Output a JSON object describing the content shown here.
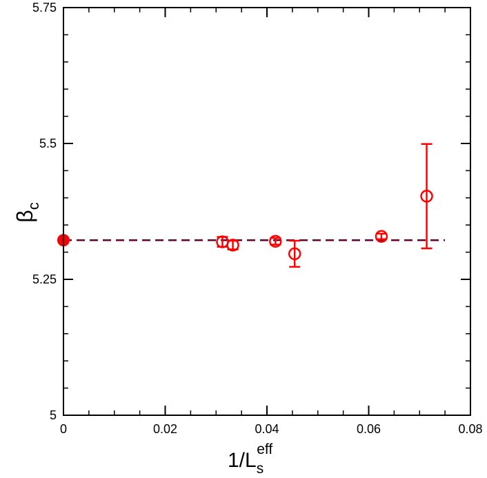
{
  "chart_data": {
    "type": "scatter",
    "xlabel": {
      "main": "1/L",
      "sub": "s",
      "sup": "eff"
    },
    "ylabel": {
      "main": "β",
      "sub": "c"
    },
    "xlim": [
      0,
      0.08
    ],
    "ylim": [
      5,
      5.75
    ],
    "x_ticks": [
      {
        "value": 0,
        "label": "0"
      },
      {
        "value": 0.02,
        "label": "0.02"
      },
      {
        "value": 0.04,
        "label": "0.04"
      },
      {
        "value": 0.06,
        "label": "0.06"
      },
      {
        "value": 0.08,
        "label": "0.08"
      }
    ],
    "y_ticks": [
      {
        "value": 5,
        "label": "5"
      },
      {
        "value": 5.25,
        "label": "5.25"
      },
      {
        "value": 5.5,
        "label": "5.5"
      },
      {
        "value": 5.75,
        "label": "5.75"
      }
    ],
    "x_minor_step": 0.005,
    "y_minor_step": 0.05,
    "grid": false,
    "series": [
      {
        "marker": "open-circle",
        "color": "#ff0000",
        "points": [
          {
            "x": 0.03125,
            "y": 5.319,
            "err": 0.009
          },
          {
            "x": 0.0333,
            "y": 5.313,
            "err": 0.008
          },
          {
            "x": 0.04167,
            "y": 5.32,
            "err": 0.006
          },
          {
            "x": 0.04545,
            "y": 5.297,
            "err": 0.024
          },
          {
            "x": 0.0625,
            "y": 5.329,
            "err": 0.005
          },
          {
            "x": 0.0714,
            "y": 5.403,
            "err": 0.096
          }
        ]
      },
      {
        "marker": "filled-circle",
        "color": "#ff0000",
        "points": [
          {
            "x": 0,
            "y": 5.322
          }
        ]
      }
    ],
    "fit_line": {
      "style": "dashed",
      "color": "#660033",
      "x_range": [
        0,
        0.075
      ],
      "y": 5.322
    }
  }
}
